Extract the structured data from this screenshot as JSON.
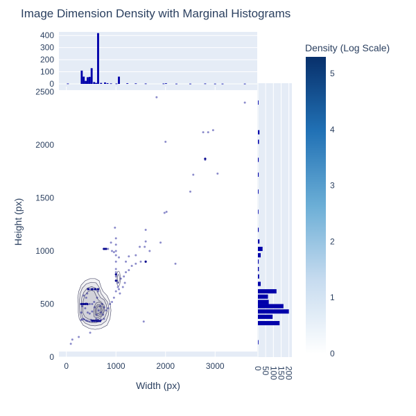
{
  "chart_data": {
    "type": "scatter",
    "title": "Image Dimension Density with Marginal Histograms",
    "xlabel": "Width (px)",
    "ylabel": "Height (px)",
    "xlim": [
      -150,
      3850
    ],
    "ylim": [
      0,
      2550
    ],
    "x_ticks": [
      0,
      1000,
      2000,
      3000
    ],
    "y_ticks": [
      0,
      500,
      1000,
      1500,
      2000,
      2500
    ],
    "grid": true,
    "colorbar": {
      "title": "Density (Log Scale)",
      "range": [
        0,
        5.3
      ],
      "ticks": [
        0,
        1,
        2,
        3,
        4,
        5
      ],
      "colors": [
        "#ffffff",
        "#c6dbef",
        "#6baed6",
        "#2171b5",
        "#08306b"
      ]
    },
    "colors": {
      "plot_bg": "#e5ecf6",
      "marker": "#00008b",
      "hist_fill": "#0000aa",
      "contour": "#3b3b5c"
    },
    "top_histogram": {
      "y_ticks": [
        0,
        100,
        200,
        300,
        400
      ],
      "ylim": [
        0,
        430
      ],
      "bins": [
        {
          "x": 30,
          "count": 3
        },
        {
          "x": 310,
          "count": 110
        },
        {
          "x": 350,
          "count": 60
        },
        {
          "x": 390,
          "count": 25
        },
        {
          "x": 430,
          "count": 55
        },
        {
          "x": 470,
          "count": 58
        },
        {
          "x": 510,
          "count": 130
        },
        {
          "x": 560,
          "count": 15
        },
        {
          "x": 600,
          "count": 8
        },
        {
          "x": 640,
          "count": 420
        },
        {
          "x": 700,
          "count": 8
        },
        {
          "x": 780,
          "count": 12
        },
        {
          "x": 830,
          "count": 6
        },
        {
          "x": 900,
          "count": 4
        },
        {
          "x": 1010,
          "count": 3
        },
        {
          "x": 1060,
          "count": 60
        },
        {
          "x": 1230,
          "count": 5
        },
        {
          "x": 1400,
          "count": 4
        },
        {
          "x": 1600,
          "count": 3
        },
        {
          "x": 1960,
          "count": 3
        },
        {
          "x": 2010,
          "count": 5
        },
        {
          "x": 2220,
          "count": 2
        },
        {
          "x": 2500,
          "count": 2
        },
        {
          "x": 2800,
          "count": 3
        },
        {
          "x": 3000,
          "count": 2
        },
        {
          "x": 3150,
          "count": 2
        },
        {
          "x": 3600,
          "count": 2
        }
      ]
    },
    "right_histogram": {
      "x_ticks": [
        0,
        50,
        100,
        150,
        200
      ],
      "xlim": [
        0,
        215
      ],
      "bins": [
        {
          "y": 140,
          "count": 2
        },
        {
          "y": 320,
          "count": 140
        },
        {
          "y": 380,
          "count": 95
        },
        {
          "y": 430,
          "count": 200
        },
        {
          "y": 480,
          "count": 165
        },
        {
          "y": 520,
          "count": 70
        },
        {
          "y": 570,
          "count": 65
        },
        {
          "y": 620,
          "count": 120
        },
        {
          "y": 690,
          "count": 18
        },
        {
          "y": 760,
          "count": 8
        },
        {
          "y": 830,
          "count": 6
        },
        {
          "y": 900,
          "count": 5
        },
        {
          "y": 960,
          "count": 18
        },
        {
          "y": 1020,
          "count": 30
        },
        {
          "y": 1090,
          "count": 10
        },
        {
          "y": 1200,
          "count": 5
        },
        {
          "y": 1370,
          "count": 3
        },
        {
          "y": 1560,
          "count": 4
        },
        {
          "y": 1720,
          "count": 5
        },
        {
          "y": 1860,
          "count": 5
        },
        {
          "y": 2030,
          "count": 7
        },
        {
          "y": 2120,
          "count": 10
        },
        {
          "y": 2400,
          "count": 4
        }
      ]
    },
    "points": [
      {
        "x": 90,
        "y": 125
      },
      {
        "x": 120,
        "y": 165
      },
      {
        "x": 250,
        "y": 190
      },
      {
        "x": 480,
        "y": 230
      },
      {
        "x": 300,
        "y": 350
      },
      {
        "x": 330,
        "y": 360
      },
      {
        "x": 360,
        "y": 355
      },
      {
        "x": 400,
        "y": 345
      },
      {
        "x": 430,
        "y": 340
      },
      {
        "x": 470,
        "y": 335
      },
      {
        "x": 500,
        "y": 350
      },
      {
        "x": 540,
        "y": 345
      },
      {
        "x": 600,
        "y": 360
      },
      {
        "x": 640,
        "y": 350
      },
      {
        "x": 700,
        "y": 352
      },
      {
        "x": 760,
        "y": 360
      },
      {
        "x": 300,
        "y": 420
      },
      {
        "x": 320,
        "y": 480
      },
      {
        "x": 330,
        "y": 500
      },
      {
        "x": 360,
        "y": 500
      },
      {
        "x": 400,
        "y": 505
      },
      {
        "x": 430,
        "y": 498
      },
      {
        "x": 470,
        "y": 500
      },
      {
        "x": 520,
        "y": 500
      },
      {
        "x": 560,
        "y": 520
      },
      {
        "x": 620,
        "y": 560
      },
      {
        "x": 680,
        "y": 480
      },
      {
        "x": 720,
        "y": 500
      },
      {
        "x": 760,
        "y": 470
      },
      {
        "x": 800,
        "y": 440
      },
      {
        "x": 840,
        "y": 460
      },
      {
        "x": 400,
        "y": 560
      },
      {
        "x": 420,
        "y": 600
      },
      {
        "x": 460,
        "y": 640
      },
      {
        "x": 500,
        "y": 640
      },
      {
        "x": 540,
        "y": 640
      },
      {
        "x": 600,
        "y": 640
      },
      {
        "x": 640,
        "y": 620
      },
      {
        "x": 350,
        "y": 580
      },
      {
        "x": 380,
        "y": 460
      },
      {
        "x": 430,
        "y": 420
      },
      {
        "x": 470,
        "y": 410
      },
      {
        "x": 520,
        "y": 430
      },
      {
        "x": 570,
        "y": 470
      },
      {
        "x": 610,
        "y": 400
      },
      {
        "x": 650,
        "y": 440
      },
      {
        "x": 700,
        "y": 420
      },
      {
        "x": 740,
        "y": 400
      },
      {
        "x": 880,
        "y": 500
      },
      {
        "x": 920,
        "y": 520
      },
      {
        "x": 960,
        "y": 560
      },
      {
        "x": 1000,
        "y": 620
      },
      {
        "x": 1040,
        "y": 700
      },
      {
        "x": 1100,
        "y": 740
      },
      {
        "x": 1160,
        "y": 760
      },
      {
        "x": 1200,
        "y": 800
      },
      {
        "x": 1260,
        "y": 820
      },
      {
        "x": 1320,
        "y": 860
      },
      {
        "x": 1400,
        "y": 880
      },
      {
        "x": 1500,
        "y": 900
      },
      {
        "x": 1000,
        "y": 760
      },
      {
        "x": 1000,
        "y": 800
      },
      {
        "x": 1000,
        "y": 830
      },
      {
        "x": 1000,
        "y": 900
      },
      {
        "x": 1000,
        "y": 960
      },
      {
        "x": 1000,
        "y": 1000
      },
      {
        "x": 1000,
        "y": 1060
      },
      {
        "x": 1000,
        "y": 1120
      },
      {
        "x": 1020,
        "y": 720
      },
      {
        "x": 1040,
        "y": 660
      },
      {
        "x": 1060,
        "y": 640
      },
      {
        "x": 1080,
        "y": 600
      },
      {
        "x": 1140,
        "y": 660
      },
      {
        "x": 1180,
        "y": 700
      },
      {
        "x": 1200,
        "y": 900
      },
      {
        "x": 1260,
        "y": 950
      },
      {
        "x": 1400,
        "y": 960
      },
      {
        "x": 1480,
        "y": 1040
      },
      {
        "x": 1580,
        "y": 1040
      },
      {
        "x": 1600,
        "y": 1090
      },
      {
        "x": 1600,
        "y": 1200
      },
      {
        "x": 1560,
        "y": 335
      },
      {
        "x": 1900,
        "y": 1080
      },
      {
        "x": 2200,
        "y": 880
      },
      {
        "x": 1980,
        "y": 1360
      },
      {
        "x": 2020,
        "y": 1370
      },
      {
        "x": 2500,
        "y": 1560
      },
      {
        "x": 2560,
        "y": 1720
      },
      {
        "x": 2000,
        "y": 2030
      },
      {
        "x": 2800,
        "y": 1860
      },
      {
        "x": 3050,
        "y": 1730
      },
      {
        "x": 2760,
        "y": 2120
      },
      {
        "x": 2860,
        "y": 2120
      },
      {
        "x": 2960,
        "y": 2140
      },
      {
        "x": 1820,
        "y": 2450
      },
      {
        "x": 3600,
        "y": 2400
      },
      {
        "x": 750,
        "y": 1020
      },
      {
        "x": 780,
        "y": 1020
      },
      {
        "x": 840,
        "y": 1020
      },
      {
        "x": 900,
        "y": 1080
      },
      {
        "x": 920,
        "y": 1000
      },
      {
        "x": 960,
        "y": 990
      },
      {
        "x": 980,
        "y": 1220
      },
      {
        "x": 1680,
        "y": 1000
      },
      {
        "x": 1600,
        "y": 900
      },
      {
        "x": 1060,
        "y": 940
      }
    ],
    "dense_points": [
      {
        "x": 440,
        "y": 640
      },
      {
        "x": 520,
        "y": 640
      },
      {
        "x": 580,
        "y": 640
      },
      {
        "x": 640,
        "y": 640
      },
      {
        "x": 300,
        "y": 500
      },
      {
        "x": 340,
        "y": 500
      },
      {
        "x": 380,
        "y": 500
      },
      {
        "x": 420,
        "y": 500
      },
      {
        "x": 520,
        "y": 340
      },
      {
        "x": 560,
        "y": 340
      },
      {
        "x": 600,
        "y": 340
      },
      {
        "x": 640,
        "y": 340
      },
      {
        "x": 680,
        "y": 340
      },
      {
        "x": 760,
        "y": 1020
      },
      {
        "x": 800,
        "y": 1020
      },
      {
        "x": 2800,
        "y": 1870
      },
      {
        "x": 1000,
        "y": 780
      },
      {
        "x": 1000,
        "y": 720
      },
      {
        "x": 1600,
        "y": 900
      }
    ],
    "contours": [
      {
        "type": "path",
        "points": [
          [
            240,
            420
          ],
          [
            260,
            360
          ],
          [
            340,
            300
          ],
          [
            460,
            270
          ],
          [
            580,
            260
          ],
          [
            700,
            270
          ],
          [
            820,
            300
          ],
          [
            880,
            360
          ],
          [
            900,
            440
          ],
          [
            880,
            520
          ],
          [
            820,
            580
          ],
          [
            740,
            620
          ],
          [
            700,
            660
          ],
          [
            660,
            720
          ],
          [
            580,
            740
          ],
          [
            480,
            740
          ],
          [
            380,
            720
          ],
          [
            300,
            680
          ],
          [
            250,
            620
          ],
          [
            230,
            560
          ],
          [
            240,
            500
          ]
        ]
      },
      {
        "type": "path",
        "points": [
          [
            270,
            420
          ],
          [
            300,
            360
          ],
          [
            380,
            320
          ],
          [
            480,
            300
          ],
          [
            580,
            295
          ],
          [
            700,
            305
          ],
          [
            800,
            340
          ],
          [
            850,
            400
          ],
          [
            860,
            460
          ],
          [
            830,
            520
          ],
          [
            760,
            560
          ],
          [
            700,
            600
          ],
          [
            660,
            660
          ],
          [
            600,
            700
          ],
          [
            500,
            705
          ],
          [
            400,
            690
          ],
          [
            320,
            650
          ],
          [
            280,
            600
          ],
          [
            265,
            540
          ],
          [
            265,
            480
          ]
        ]
      },
      {
        "type": "path",
        "points": [
          [
            300,
            420
          ],
          [
            330,
            370
          ],
          [
            400,
            340
          ],
          [
            500,
            325
          ],
          [
            600,
            325
          ],
          [
            700,
            340
          ],
          [
            780,
            380
          ],
          [
            820,
            430
          ],
          [
            810,
            490
          ],
          [
            760,
            540
          ],
          [
            690,
            560
          ],
          [
            640,
            600
          ],
          [
            590,
            650
          ],
          [
            510,
            665
          ],
          [
            420,
            650
          ],
          [
            350,
            610
          ],
          [
            310,
            560
          ],
          [
            300,
            500
          ]
        ]
      },
      {
        "type": "path",
        "points": [
          [
            330,
            420
          ],
          [
            370,
            380
          ],
          [
            440,
            360
          ],
          [
            520,
            350
          ],
          [
            600,
            350
          ],
          [
            680,
            365
          ],
          [
            740,
            400
          ],
          [
            770,
            440
          ],
          [
            760,
            490
          ],
          [
            700,
            520
          ],
          [
            640,
            540
          ],
          [
            600,
            580
          ],
          [
            560,
            620
          ],
          [
            500,
            630
          ],
          [
            430,
            615
          ],
          [
            370,
            580
          ],
          [
            340,
            530
          ],
          [
            330,
            470
          ]
        ]
      },
      {
        "type": "path",
        "points": [
          [
            560,
            380
          ],
          [
            620,
            370
          ],
          [
            690,
            385
          ],
          [
            740,
            420
          ],
          [
            750,
            460
          ],
          [
            720,
            500
          ],
          [
            660,
            520
          ],
          [
            600,
            510
          ],
          [
            560,
            470
          ],
          [
            550,
            420
          ]
        ]
      },
      {
        "type": "path",
        "points": [
          [
            590,
            395
          ],
          [
            640,
            390
          ],
          [
            690,
            405
          ],
          [
            720,
            440
          ],
          [
            715,
            475
          ],
          [
            680,
            495
          ],
          [
            630,
            495
          ],
          [
            590,
            470
          ],
          [
            580,
            430
          ]
        ]
      },
      {
        "type": "path",
        "points": [
          [
            610,
            410
          ],
          [
            650,
            408
          ],
          [
            690,
            425
          ],
          [
            700,
            455
          ],
          [
            680,
            478
          ],
          [
            640,
            480
          ],
          [
            610,
            460
          ],
          [
            603,
            430
          ]
        ]
      },
      {
        "type": "ellipse",
        "cx": 1050,
        "cy": 740,
        "rx": 40,
        "ry": 70
      },
      {
        "type": "ellipse",
        "cx": 1050,
        "cy": 740,
        "rx": 20,
        "ry": 40
      }
    ]
  }
}
